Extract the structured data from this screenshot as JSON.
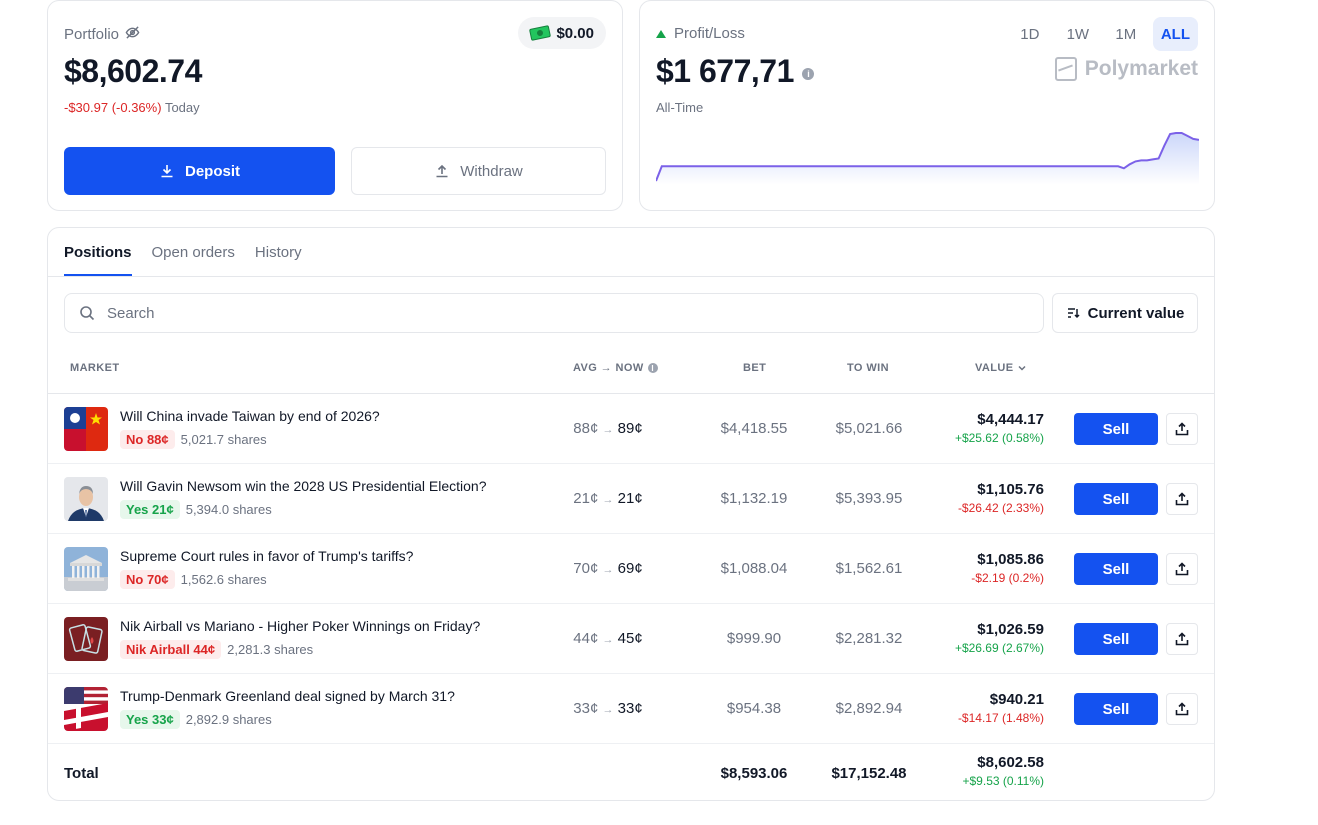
{
  "portfolio": {
    "label": "Portfolio",
    "value": "$8,602.74",
    "change": "-$30.97 (-0.36%)",
    "change_period": "Today",
    "cash": "$0.00",
    "deposit_label": "Deposit",
    "withdraw_label": "Withdraw"
  },
  "pnl": {
    "label": "Profit/Loss",
    "value": "$1 677,71",
    "period_label": "All-Time",
    "ranges": [
      "1D",
      "1W",
      "1M",
      "ALL"
    ],
    "active_range": "ALL",
    "brand": "Polymarket",
    "chart_color": "#7b61e8",
    "chart_data": {
      "type": "area",
      "values": [
        0,
        15,
        15,
        15,
        15,
        15,
        15,
        15,
        15,
        15,
        15,
        15,
        15,
        15,
        15,
        15,
        15,
        15,
        15,
        15,
        15,
        15,
        15,
        15,
        15,
        15,
        15,
        15,
        15,
        15,
        15,
        15,
        15,
        15,
        15,
        15,
        15,
        15,
        15,
        15,
        15,
        15,
        15,
        15,
        15,
        15,
        15,
        15,
        15,
        15,
        15,
        15,
        15,
        15,
        15,
        15,
        15,
        15,
        15,
        15,
        15,
        15,
        15,
        15,
        15,
        15,
        15,
        15,
        15,
        15,
        15,
        15,
        15,
        15,
        15,
        15,
        15,
        15,
        15,
        15,
        15,
        13,
        17,
        20,
        21,
        21,
        22,
        23,
        36,
        48,
        49,
        49,
        46,
        43,
        42
      ]
    }
  },
  "tabs": [
    "Positions",
    "Open orders",
    "History"
  ],
  "active_tab": "Positions",
  "search": {
    "placeholder": "Search"
  },
  "sort": {
    "label": "Current value"
  },
  "columns": {
    "market": "MARKET",
    "avg_now": "AVG → NOW",
    "bet": "BET",
    "to_win": "TO WIN",
    "value": "VALUE"
  },
  "positions": [
    {
      "title": "Will China invade Taiwan by end of 2026?",
      "outcome": "No 88¢",
      "outcome_type": "no",
      "shares": "5,021.7 shares",
      "avg": "88¢",
      "now": "89¢",
      "bet": "$4,418.55",
      "to_win": "$5,021.66",
      "value": "$4,444.17",
      "pnl": "+$25.62 (0.58%)",
      "pnl_dir": "pos",
      "thumb": "taiwan-china"
    },
    {
      "title": "Will Gavin Newsom win the 2028 US Presidential Election?",
      "outcome": "Yes 21¢",
      "outcome_type": "yes",
      "shares": "5,394.0 shares",
      "avg": "21¢",
      "now": "21¢",
      "bet": "$1,132.19",
      "to_win": "$5,393.95",
      "value": "$1,105.76",
      "pnl": "-$26.42 (2.33%)",
      "pnl_dir": "neg",
      "thumb": "newsom"
    },
    {
      "title": "Supreme Court rules in favor of Trump's tariffs?",
      "outcome": "No 70¢",
      "outcome_type": "no",
      "shares": "1,562.6 shares",
      "avg": "70¢",
      "now": "69¢",
      "bet": "$1,088.04",
      "to_win": "$1,562.61",
      "value": "$1,085.86",
      "pnl": "-$2.19 (0.2%)",
      "pnl_dir": "neg",
      "thumb": "supreme-court"
    },
    {
      "title": "Nik Airball vs Mariano - Higher Poker Winnings on Friday?",
      "outcome": "Nik Airball 44¢",
      "outcome_type": "no",
      "shares": "2,281.3 shares",
      "avg": "44¢",
      "now": "45¢",
      "bet": "$999.90",
      "to_win": "$2,281.32",
      "value": "$1,026.59",
      "pnl": "+$26.69 (2.67%)",
      "pnl_dir": "pos",
      "thumb": "poker"
    },
    {
      "title": "Trump-Denmark Greenland deal signed by March 31?",
      "outcome": "Yes 33¢",
      "outcome_type": "yes",
      "shares": "2,892.9 shares",
      "avg": "33¢",
      "now": "33¢",
      "bet": "$954.38",
      "to_win": "$2,892.94",
      "value": "$940.21",
      "pnl": "-$14.17 (1.48%)",
      "pnl_dir": "neg",
      "thumb": "us-denmark"
    }
  ],
  "sell_label": "Sell",
  "total": {
    "label": "Total",
    "bet": "$8,593.06",
    "to_win": "$17,152.48",
    "value": "$8,602.58",
    "pnl": "+$9.53 (0.11%)"
  }
}
